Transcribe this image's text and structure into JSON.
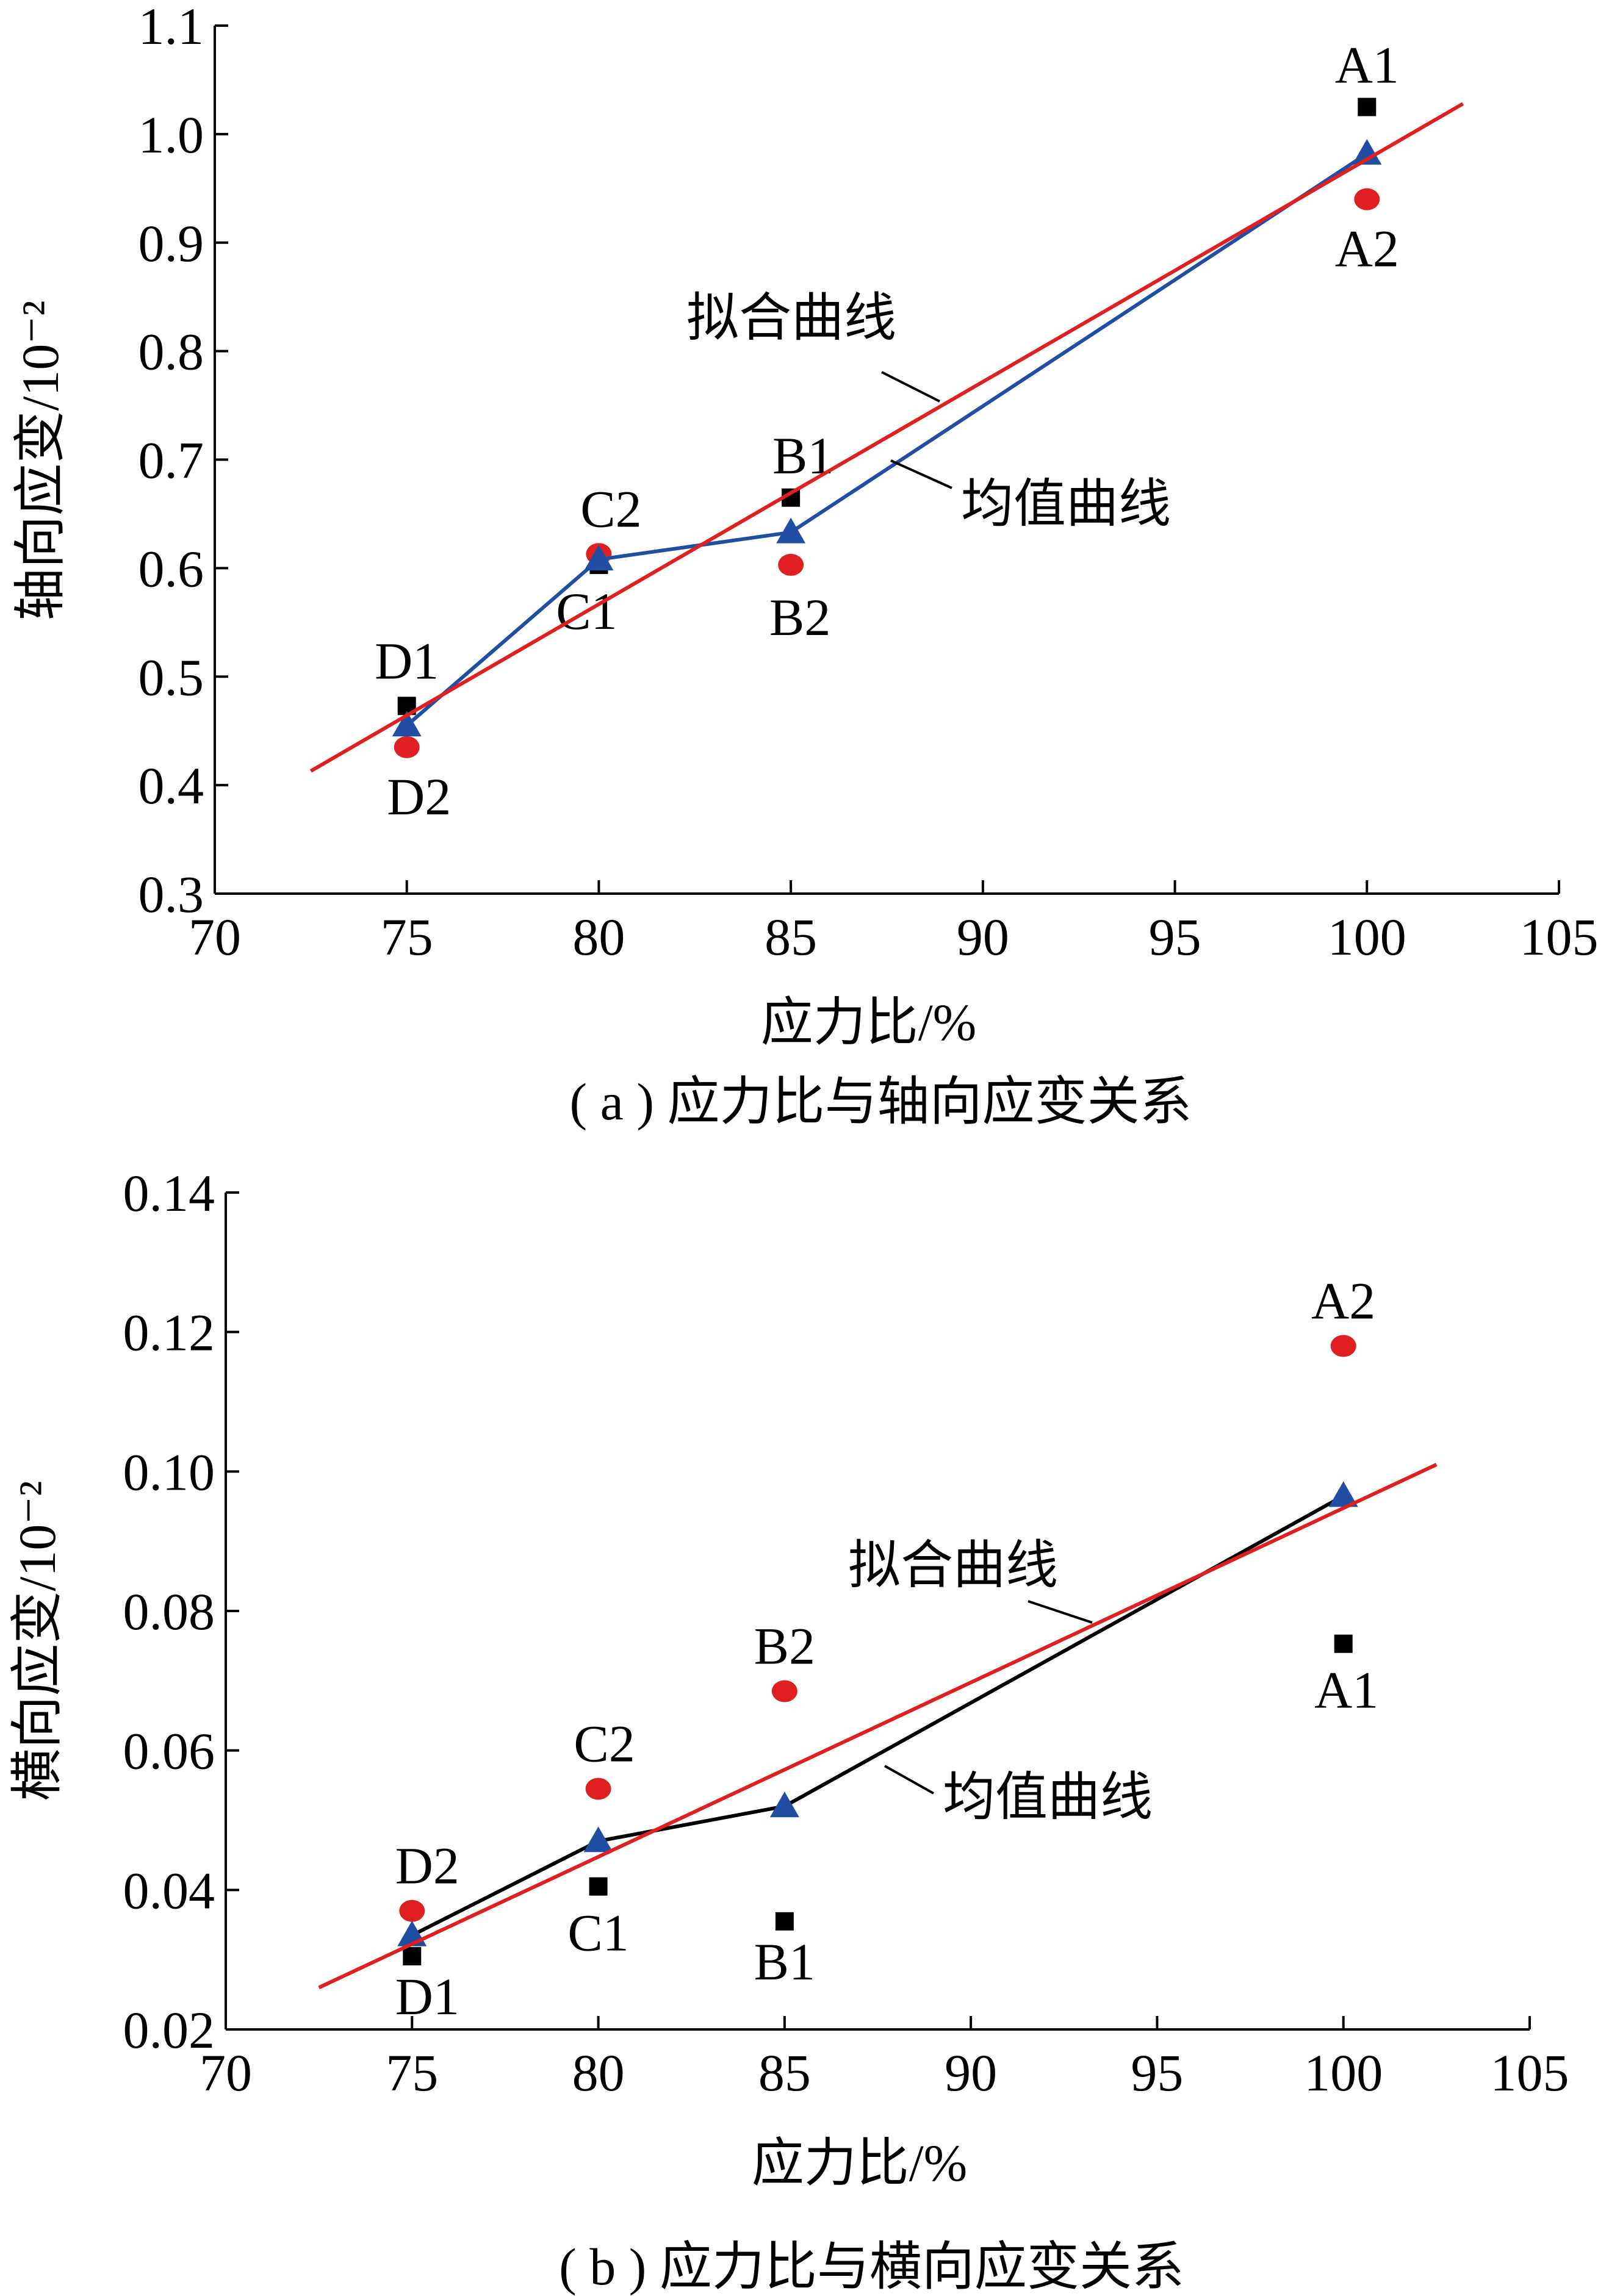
{
  "chart_data": [
    {
      "type": "scatter",
      "ylabel": "轴向应变/10⁻²",
      "xlabel": "应力比/%",
      "caption": "( a ) 应力比与轴向应变关系",
      "xlim": [
        70,
        105
      ],
      "ylim": [
        0.3,
        1.1
      ],
      "xticks": [
        "70",
        "75",
        "80",
        "85",
        "90",
        "95",
        "100",
        "105"
      ],
      "yticks": [
        "0.3",
        "0.4",
        "0.5",
        "0.6",
        "0.7",
        "0.8",
        "0.9",
        "1.0",
        "1.1"
      ],
      "series": [
        {
          "marker": "square",
          "color": "#000000",
          "points": [
            {
              "label": "D1",
              "x": 75,
              "y": 0.473
            },
            {
              "label": "C1",
              "x": 80,
              "y": 0.603
            },
            {
              "label": "B1",
              "x": 85,
              "y": 0.665
            },
            {
              "label": "A1",
              "x": 100,
              "y": 1.025
            }
          ]
        },
        {
          "marker": "circle",
          "color": "#e02020",
          "points": [
            {
              "label": "D2",
              "x": 75,
              "y": 0.435
            },
            {
              "label": "C2",
              "x": 80,
              "y": 0.613
            },
            {
              "label": "B2",
              "x": 85,
              "y": 0.603
            },
            {
              "label": "A2",
              "x": 100,
              "y": 0.94
            }
          ]
        },
        {
          "name": "均值曲线",
          "marker": "triangle",
          "color": "#1f4ea3",
          "line": true,
          "points": [
            {
              "x": 75,
              "y": 0.455
            },
            {
              "x": 80,
              "y": 0.608
            },
            {
              "x": 85,
              "y": 0.633
            },
            {
              "x": 100,
              "y": 0.982
            }
          ]
        },
        {
          "name": "拟合曲线",
          "type": "fit-line",
          "color": "#e02020",
          "points": [
            {
              "x": 72.5,
              "y": 0.413
            },
            {
              "x": 102.5,
              "y": 1.028
            }
          ]
        }
      ]
    },
    {
      "type": "scatter",
      "ylabel": "横向应变/10⁻²",
      "xlabel": "应力比/%",
      "caption": "( b ) 应力比与横向应变关系",
      "xlim": [
        70,
        105
      ],
      "ylim": [
        0.02,
        0.14
      ],
      "xticks": [
        "70",
        "75",
        "80",
        "85",
        "90",
        "95",
        "100",
        "105"
      ],
      "yticks": [
        "0.02",
        "0.04",
        "0.06",
        "0.08",
        "0.10",
        "0.12",
        "0.14"
      ],
      "series": [
        {
          "marker": "square",
          "color": "#000000",
          "points": [
            {
              "label": "D1",
              "x": 75,
              "y": 0.0305
            },
            {
              "label": "C1",
              "x": 80,
              "y": 0.0405
            },
            {
              "label": "B1",
              "x": 85,
              "y": 0.0355
            },
            {
              "label": "A1",
              "x": 100,
              "y": 0.0753
            }
          ]
        },
        {
          "marker": "circle",
          "color": "#e02020",
          "points": [
            {
              "label": "D2",
              "x": 75,
              "y": 0.037
            },
            {
              "label": "C2",
              "x": 80,
              "y": 0.0545
            },
            {
              "label": "B2",
              "x": 85,
              "y": 0.0685
            },
            {
              "label": "A2",
              "x": 100,
              "y": 0.118
            }
          ]
        },
        {
          "name": "均值曲线",
          "marker": "triangle",
          "color": "#1f4ea3",
          "linecolor": "#000000",
          "line": true,
          "points": [
            {
              "x": 75,
              "y": 0.0335
            },
            {
              "x": 80,
              "y": 0.047
            },
            {
              "x": 85,
              "y": 0.052
            },
            {
              "x": 100,
              "y": 0.0965
            }
          ]
        },
        {
          "name": "拟合曲线",
          "type": "fit-line",
          "color": "#e02020",
          "points": [
            {
              "x": 72.5,
              "y": 0.026
            },
            {
              "x": 102.5,
              "y": 0.101
            }
          ]
        }
      ]
    }
  ]
}
